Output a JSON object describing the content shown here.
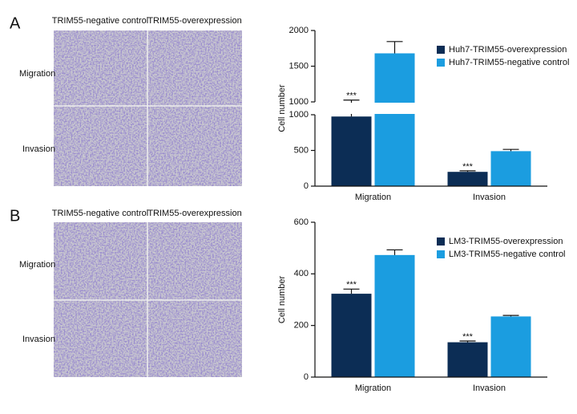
{
  "panels": [
    {
      "label": "A",
      "columns": [
        "TRIM55-negative control",
        "TRIM55-overexpression"
      ],
      "rows": [
        "Migration",
        "Invasion"
      ]
    },
    {
      "label": "B",
      "columns": [
        "TRIM55-negative control",
        "TRIM55-overexpression"
      ],
      "rows": [
        "Migration",
        "Invasion"
      ]
    }
  ],
  "chart_data": [
    {
      "type": "bar",
      "ylabel": "Cell number",
      "categories": [
        "Migration",
        "Invasion"
      ],
      "ysegments": [
        {
          "ylim": [
            0,
            1000
          ],
          "yticks": [
            0,
            500,
            1000
          ]
        },
        {
          "ylim": [
            1000,
            2000
          ],
          "yticks": [
            1000,
            1500,
            2000
          ]
        }
      ],
      "series": [
        {
          "name": "Huh7-TRIM55-overexpression",
          "color": "#0c2d55",
          "values": [
            975,
            200
          ],
          "errors": [
            50,
            15
          ],
          "significance": [
            "***",
            "***"
          ]
        },
        {
          "name": "Huh7-TRIM55-negative control",
          "color": "#1b9de0",
          "values": [
            1680,
            490
          ],
          "errors": [
            165,
            25
          ]
        }
      ]
    },
    {
      "type": "bar",
      "ylabel": "Cell number",
      "categories": [
        "Migration",
        "Invasion"
      ],
      "ylim": [
        0,
        600
      ],
      "yticks": [
        0,
        200,
        400,
        600
      ],
      "series": [
        {
          "name": "LM3-TRIM55-overexpression",
          "color": "#0c2d55",
          "values": [
            323,
            135
          ],
          "errors": [
            18,
            5
          ],
          "significance": [
            "***",
            "***"
          ]
        },
        {
          "name": "LM3-TRIM55-negative control",
          "color": "#1b9de0",
          "values": [
            473,
            235
          ],
          "errors": [
            20,
            4
          ]
        }
      ]
    }
  ]
}
